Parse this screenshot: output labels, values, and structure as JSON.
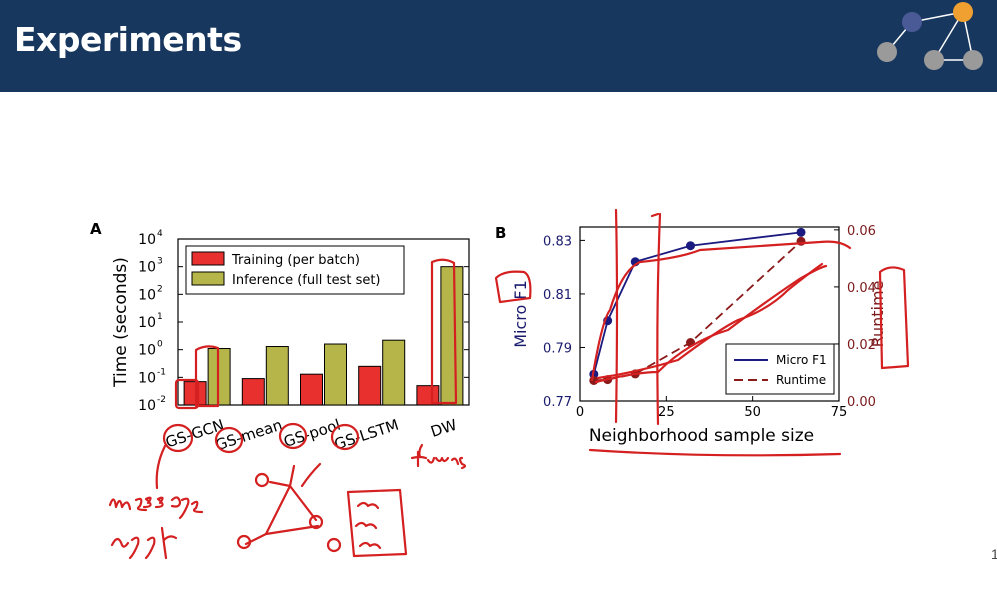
{
  "slide": {
    "title": "Experiments",
    "page_number": "1",
    "colors": {
      "header_bg": "#17375e",
      "ink": "#d42020"
    },
    "logo": {
      "icon": "graph-network-icon"
    }
  },
  "chart_data": [
    {
      "type": "bar",
      "panel_label": "A",
      "ylabel": "Time (seconds)",
      "yscale": "log",
      "ylim": [
        0.01,
        10000
      ],
      "yticks": [
        {
          "base": "10",
          "exp": "-2",
          "value": 0.01
        },
        {
          "base": "10",
          "exp": "-1",
          "value": 0.1
        },
        {
          "base": "10",
          "exp": "0",
          "value": 1
        },
        {
          "base": "10",
          "exp": "1",
          "value": 10
        },
        {
          "base": "10",
          "exp": "2",
          "value": 100
        },
        {
          "base": "10",
          "exp": "3",
          "value": 1000
        },
        {
          "base": "10",
          "exp": "4",
          "value": 10000
        }
      ],
      "categories": [
        "GS-GCN",
        "GS-mean",
        "GS-pool",
        "GS-LSTM",
        "DW"
      ],
      "series": [
        {
          "name": "Training (per batch)",
          "color": "#e8302f",
          "values": [
            0.07,
            0.09,
            0.13,
            0.25,
            0.05
          ]
        },
        {
          "name": "Inference (full test set)",
          "color": "#b5b54a",
          "values": [
            1.1,
            1.3,
            1.6,
            2.2,
            1000
          ]
        }
      ],
      "legend": "top"
    },
    {
      "type": "line",
      "panel_label": "B",
      "xlabel": "Neighborhood sample size",
      "xlim": [
        0,
        75
      ],
      "xticks": [
        0,
        25,
        50,
        75
      ],
      "ylabel_left": "Micro F1",
      "ylim_left": [
        0.77,
        0.835
      ],
      "yticks_left": [
        "0.77",
        "0.79",
        "0.81",
        "0.83"
      ],
      "ylabel_right": "Runtime",
      "ylim_right": [
        0.0,
        0.061
      ],
      "yticks_right": [
        "0.00",
        "0.02",
        "0.04",
        "0.06"
      ],
      "legend": "bottom-right",
      "series": [
        {
          "name": "Micro F1",
          "axis": "left",
          "color": "#1a1a80",
          "style": "solid",
          "x": [
            4,
            8,
            16,
            32,
            64
          ],
          "y": [
            0.78,
            0.8,
            0.822,
            0.828,
            0.833
          ]
        },
        {
          "name": "Runtime",
          "axis": "right",
          "color": "#8b1a1a",
          "style": "dashed",
          "x": [
            4,
            8,
            16,
            32,
            64
          ],
          "y": [
            0.0072,
            0.0075,
            0.0095,
            0.0205,
            0.056
          ]
        }
      ]
    }
  ],
  "annotations": {
    "handwriting": [
      "message",
      "aggr",
      "trans"
    ]
  }
}
